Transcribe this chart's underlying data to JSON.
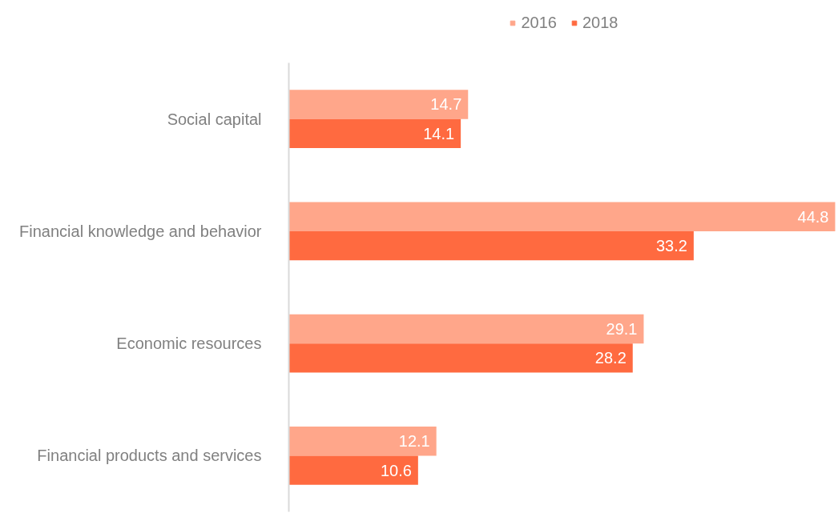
{
  "chart_data": {
    "type": "bar",
    "orientation": "horizontal",
    "categories": [
      "Social capital",
      "Financial knowledge and behavior",
      "Economic resources",
      "Financial products and services"
    ],
    "series": [
      {
        "name": "2016",
        "color": "#ffa68a",
        "values": [
          14.7,
          44.8,
          29.1,
          12.1
        ]
      },
      {
        "name": "2018",
        "color": "#ff6a40",
        "values": [
          14.1,
          33.2,
          28.2,
          10.6
        ]
      }
    ],
    "data_labels": true,
    "legend": "top",
    "grid": false
  }
}
